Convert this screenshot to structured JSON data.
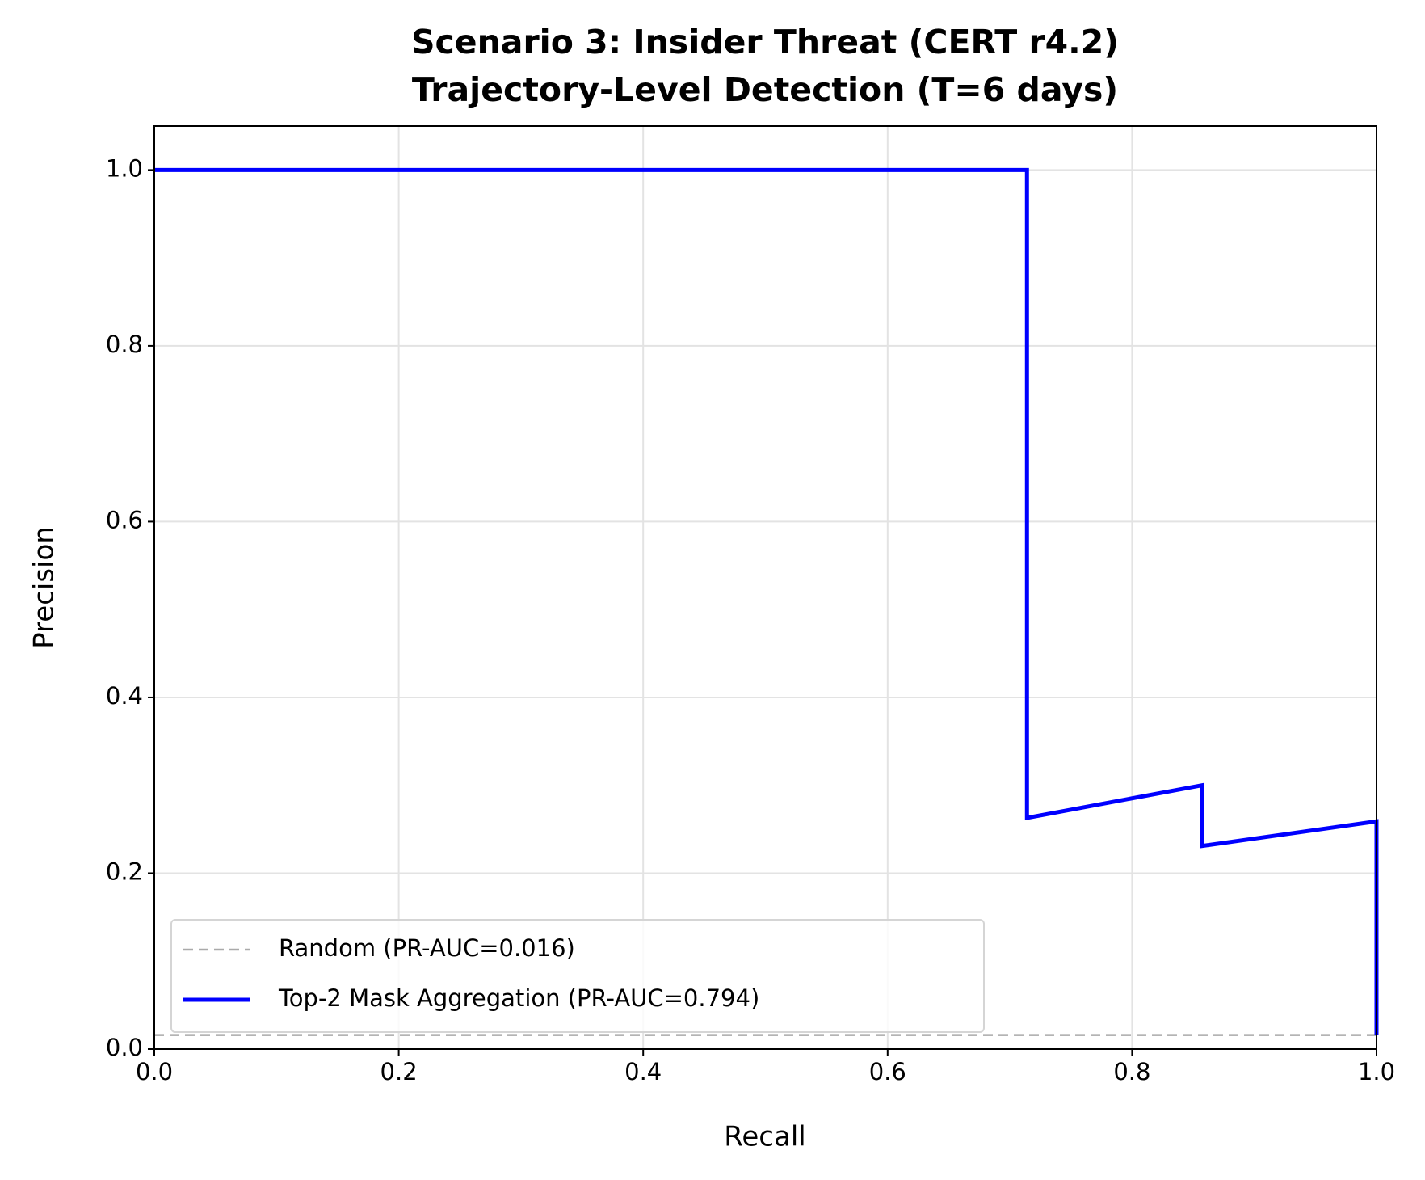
{
  "chart_data": {
    "type": "line",
    "title": [
      "Scenario 3: Insider Threat (CERT r4.2)",
      "Trajectory-Level Detection (T=6 days)"
    ],
    "x_label": "Recall",
    "y_label": "Precision",
    "xlim": [
      0,
      1.0
    ],
    "ylim": [
      0,
      1.05
    ],
    "xticks": [
      {
        "value": 0,
        "label": "0.0"
      },
      0.2,
      0.4,
      0.6,
      0.8,
      {
        "value": 1,
        "label": "1.0"
      }
    ],
    "yticks": [
      {
        "value": 0,
        "label": "0.0"
      },
      0.2,
      0.4,
      0.6,
      0.8,
      {
        "value": 1,
        "label": "1.0"
      }
    ],
    "grid": true,
    "legend": "lower left",
    "series": [
      {
        "name": "Random (PR-AUC=0.016)",
        "color": "#aaaaaa",
        "linestyle": "dashed",
        "x": [
          0,
          1
        ],
        "values": [
          0.016,
          0.016
        ]
      },
      {
        "name": "Top-2 Mask Aggregation (PR-AUC=0.794)",
        "color": "#0000ff",
        "linestyle": "solid",
        "x": [
          0,
          0.714,
          0.714,
          0.857,
          0.857,
          1.0,
          1.0
        ],
        "values": [
          1.0,
          1.0,
          0.263,
          0.3,
          0.231,
          0.259,
          0.016
        ]
      }
    ]
  }
}
